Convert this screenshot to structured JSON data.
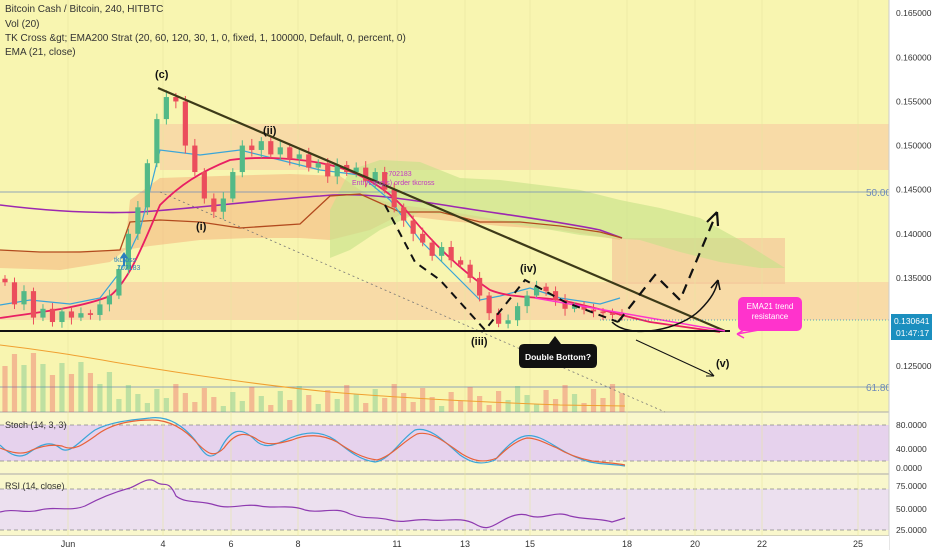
{
  "header": {
    "title": "Bitcoin Cash / Bitcoin, 240, HITBTC",
    "indicators": [
      "Vol (20)",
      "TK Cross &gt; EMA200 Strat (20, 60, 120, 30, 1, 0, fixed, 1, 100000, Default, 0, percent, 0)",
      "EMA (21, close)"
    ]
  },
  "colors": {
    "background": "#f8f5b0",
    "candle_up": "#53b987",
    "candle_down": "#eb4d5c",
    "ema21": "#e91e63",
    "ema200": "#9c27b0",
    "cloud": "#c7e28a",
    "stoch_bg": "#e1c8f5",
    "rsi_bg": "#eadcf5",
    "callout": "#ff33cc",
    "last_price_tag": "#1b8fbf"
  },
  "annotations": {
    "wave_c": "(c)",
    "wave_i": "(i)",
    "wave_ii": "(ii)",
    "wave_iii": "(iii)",
    "wave_iv": "(iv)",
    "wave_v": "(v)",
    "double_bottom": "Double Bottom?",
    "ema_callout": "EMA21 trend resistance",
    "tkcross_price": "-702183",
    "tkcross_entry": "EntryLong(s) order tkcross",
    "tkcross_small": "tkcross",
    "tkcross_small_price": "702183"
  },
  "price_axis": {
    "ticks": [
      "0.165000",
      "0.160000",
      "0.155000",
      "0.150000",
      "0.145000",
      "0.140000",
      "0.135000",
      "0.125000"
    ],
    "fib_50": "50.00%",
    "fib_61": "61.80%",
    "last_price": "0.130641",
    "countdown": "01:47:17"
  },
  "stoch": {
    "label": "Stoch (14, 3, 3)",
    "ticks": [
      "80.0000",
      "40.0000",
      "0.0000"
    ]
  },
  "rsi": {
    "label": "RSI (14, close)",
    "ticks": [
      "75.0000",
      "50.0000",
      "25.0000"
    ]
  },
  "time_axis": {
    "labels": [
      "Jun",
      "4",
      "6",
      "8",
      "11",
      "13",
      "15",
      "18",
      "20",
      "22",
      "25"
    ]
  },
  "chart_data": {
    "type": "candlestick",
    "instrument": "Bitcoin Cash / Bitcoin",
    "timeframe": "240",
    "exchange": "HITBTC",
    "ylim": [
      0.1198,
      0.1665
    ],
    "price_ticks": [
      0.165,
      0.16,
      0.155,
      0.15,
      0.145,
      0.14,
      0.135,
      0.125
    ],
    "levels": {
      "fib_50": 0.1446,
      "fib_61": 0.1228,
      "support": 0.1294,
      "last": 0.130641
    },
    "approx_closes": [
      0.1345,
      0.132,
      0.1335,
      0.1305,
      0.1315,
      0.13,
      0.1312,
      0.1305,
      0.131,
      0.1308,
      0.132,
      0.133,
      0.136,
      0.14,
      0.143,
      0.148,
      0.153,
      0.1555,
      0.155,
      0.15,
      0.147,
      0.144,
      0.1425,
      0.144,
      0.147,
      0.15,
      0.1495,
      0.1505,
      0.149,
      0.1498,
      0.1485,
      0.149,
      0.1475,
      0.148,
      0.1465,
      0.1478,
      0.147,
      0.1475,
      0.146,
      0.147,
      0.145,
      0.143,
      0.1415,
      0.14,
      0.139,
      0.1375,
      0.1385,
      0.137,
      0.1365,
      0.135,
      0.133,
      0.131,
      0.1298,
      0.1302,
      0.1318,
      0.133,
      0.134,
      0.1335,
      0.1325,
      0.1315,
      0.1318,
      0.1314,
      0.1312,
      0.131,
      0.1308,
      0.1307
    ]
  }
}
